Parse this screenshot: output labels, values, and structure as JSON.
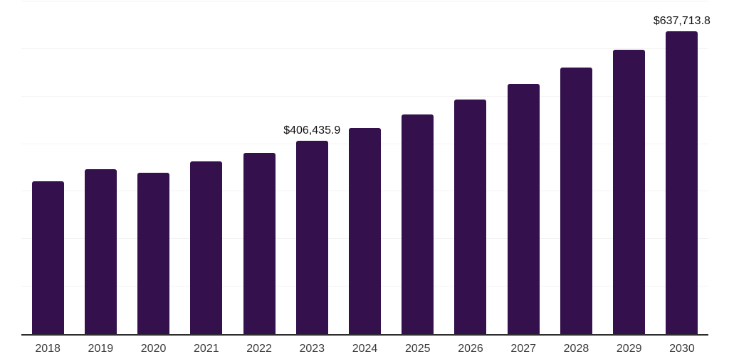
{
  "chart_data": {
    "type": "bar",
    "title": "",
    "xlabel": "",
    "ylabel": "",
    "categories": [
      "2018",
      "2019",
      "2020",
      "2021",
      "2022",
      "2023",
      "2024",
      "2025",
      "2026",
      "2027",
      "2028",
      "2029",
      "2030"
    ],
    "values": [
      321000,
      346400,
      340000,
      362900,
      381300,
      406435.9,
      433400,
      462300,
      493000,
      525800,
      560800,
      598100,
      637713.8
    ],
    "value_labels": [
      {
        "category": "2023",
        "text": "$406,435.9"
      },
      {
        "category": "2030",
        "text": "$637,713.8"
      }
    ],
    "ylim": [
      0,
      700000
    ],
    "gridline_step": 100000,
    "grid": "horizontal-only",
    "legend": "none",
    "colors": {
      "bar": "#34114C",
      "axis_line": "#2e2e2e",
      "gridline": "#f3f3f3",
      "tick_label": "#3b3b3b",
      "value_label": "#111111",
      "background": "#ffffff"
    }
  }
}
